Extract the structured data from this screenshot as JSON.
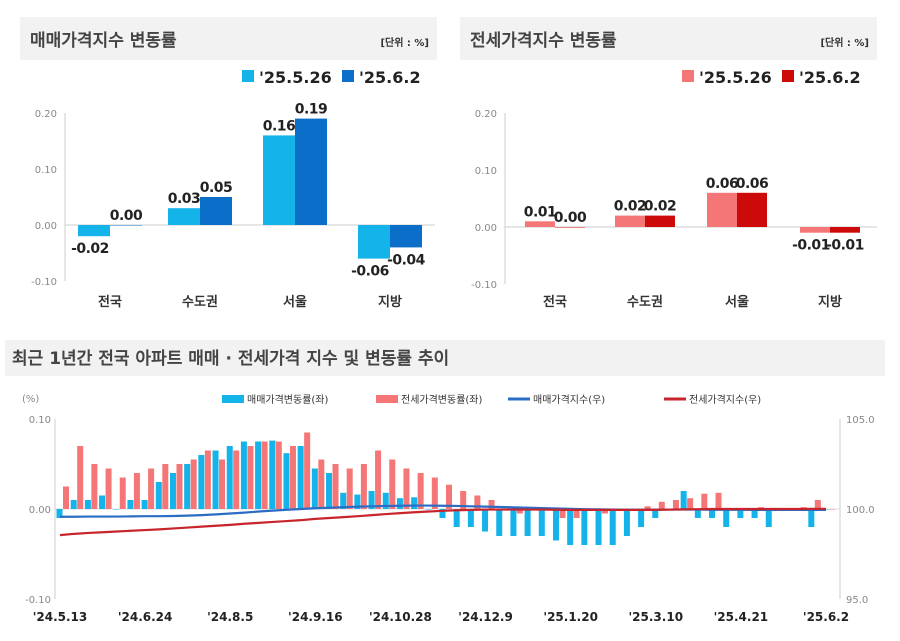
{
  "chart_data": [
    {
      "type": "bar",
      "title": "매매가격지수 변동률",
      "unit": "[단위 : %]",
      "categories": [
        "전국",
        "수도권",
        "서울",
        "지방"
      ],
      "series": [
        {
          "name": "'25.5.26",
          "color": "#14b4ea",
          "values": [
            -0.02,
            0.03,
            0.16,
            -0.06
          ]
        },
        {
          "name": "'25.6.2",
          "color": "#0b6fc9",
          "values": [
            0.0,
            0.05,
            0.19,
            -0.04
          ]
        }
      ],
      "yticks": [
        "0.20",
        "0.10",
        "0.00",
        "-0.10"
      ],
      "ylim": [
        -0.1,
        0.2
      ],
      "legend": "top-right"
    },
    {
      "type": "bar",
      "title": "전세가격지수 변동률",
      "unit": "[단위 : %]",
      "categories": [
        "전국",
        "수도권",
        "서울",
        "지방"
      ],
      "series": [
        {
          "name": "'25.5.26",
          "color": "#f57676",
          "values": [
            0.01,
            0.02,
            0.06,
            -0.01
          ]
        },
        {
          "name": "'25.6.2",
          "color": "#cc0a0a",
          "values": [
            0.0,
            0.02,
            0.06,
            -0.01
          ]
        }
      ],
      "yticks": [
        "0.20",
        "0.10",
        "0.00",
        "-0.10"
      ],
      "ylim": [
        -0.1,
        0.2
      ],
      "legend": "top-right"
    },
    {
      "type": "bar+line",
      "title": "최근 1년간 전국 아파트 매매 · 전세가격 지수 및 변동률 추이",
      "ylabel_left": "(%)",
      "yticks_left": [
        "0.10",
        "0.00",
        "-0.10"
      ],
      "ylim_left": [
        -0.1,
        0.1
      ],
      "yticks_right": [
        "105.0",
        "100.0",
        "95.0"
      ],
      "ylim_right": [
        95.0,
        105.0
      ],
      "xticks": [
        {
          "label": "'24.5.13",
          "index": 0
        },
        {
          "label": "'24.6.24",
          "index": 6
        },
        {
          "label": "'24.8.5",
          "index": 12
        },
        {
          "label": "'24.9.16",
          "index": 18
        },
        {
          "label": "'24.10.28",
          "index": 24
        },
        {
          "label": "'24.12.9",
          "index": 30
        },
        {
          "label": "'25.1.20",
          "index": 36
        },
        {
          "label": "'25.3.10",
          "index": 42
        },
        {
          "label": "'25.4.21",
          "index": 48
        },
        {
          "label": "'25.6.2",
          "index": 54
        }
      ],
      "legend": "top",
      "series": [
        {
          "name": "매매가격변동률(좌)",
          "kind": "bar",
          "axis": "left",
          "color": "#14b4ea",
          "values": [
            -0.01,
            0.01,
            0.01,
            0.015,
            0.0,
            0.01,
            0.01,
            0.03,
            0.04,
            0.05,
            0.06,
            0.065,
            0.07,
            0.075,
            0.075,
            0.076,
            0.062,
            0.07,
            0.045,
            0.04,
            0.018,
            0.016,
            0.02,
            0.018,
            0.012,
            0.013,
            0.0,
            -0.01,
            -0.02,
            -0.02,
            -0.025,
            -0.03,
            -0.03,
            -0.03,
            -0.03,
            -0.035,
            -0.04,
            -0.04,
            -0.04,
            -0.04,
            -0.03,
            -0.02,
            -0.01,
            0.0,
            0.02,
            -0.01,
            -0.01,
            -0.02,
            -0.01,
            -0.01,
            -0.02,
            0.0,
            0.0,
            -0.02,
            0.0
          ]
        },
        {
          "name": "전세가격변동률(좌)",
          "kind": "bar",
          "axis": "left",
          "color": "#f57676",
          "values": [
            0.025,
            0.07,
            0.05,
            0.045,
            0.035,
            0.04,
            0.045,
            0.05,
            0.05,
            0.055,
            0.065,
            0.055,
            0.065,
            0.07,
            0.075,
            0.075,
            0.07,
            0.085,
            0.055,
            0.05,
            0.045,
            0.05,
            0.065,
            0.055,
            0.045,
            0.04,
            0.035,
            0.027,
            0.02,
            0.015,
            0.01,
            0.0,
            -0.005,
            0.0,
            0.0,
            -0.01,
            -0.01,
            0.0,
            -0.005,
            0.0,
            0.0,
            0.003,
            0.008,
            0.01,
            0.012,
            0.017,
            0.018,
            0.0,
            0.0,
            0.002,
            0.0,
            0.0,
            0.002,
            0.01,
            0.0
          ]
        },
        {
          "name": "매매가격지수(우)",
          "kind": "line",
          "axis": "right",
          "color": "#2b6cc4",
          "values": [
            99.57,
            99.57,
            99.58,
            99.58,
            99.58,
            99.59,
            99.6,
            99.6,
            99.61,
            99.63,
            99.66,
            99.7,
            99.75,
            99.8,
            99.86,
            99.91,
            99.96,
            100.0,
            100.04,
            100.07,
            100.1,
            100.13,
            100.15,
            100.17,
            100.18,
            100.19,
            100.19,
            100.18,
            100.17,
            100.15,
            100.13,
            100.11,
            100.09,
            100.07,
            100.05,
            100.03,
            100.01,
            99.99,
            99.98,
            99.97,
            99.96,
            99.96,
            99.96,
            99.97,
            99.97,
            99.97,
            99.96,
            99.96,
            99.96,
            99.95,
            99.95,
            99.95,
            99.95,
            99.95,
            99.95
          ]
        },
        {
          "name": "전세가격지수(우)",
          "kind": "line",
          "axis": "right",
          "color": "#c8242b",
          "values": [
            98.55,
            98.62,
            98.67,
            98.71,
            98.75,
            98.79,
            98.83,
            98.87,
            98.92,
            98.97,
            99.02,
            99.07,
            99.12,
            99.18,
            99.23,
            99.28,
            99.33,
            99.38,
            99.45,
            99.5,
            99.55,
            99.6,
            99.66,
            99.72,
            99.77,
            99.82,
            99.86,
            99.9,
            99.93,
            99.95,
            99.97,
            99.97,
            99.97,
            99.97,
            99.97,
            99.96,
            99.95,
            99.95,
            99.95,
            99.95,
            99.95,
            99.95,
            99.96,
            99.97,
            99.98,
            99.99,
            100.0,
            100.0,
            100.0,
            100.0,
            100.0,
            100.0,
            100.0,
            100.01,
            100.01
          ]
        }
      ]
    }
  ]
}
